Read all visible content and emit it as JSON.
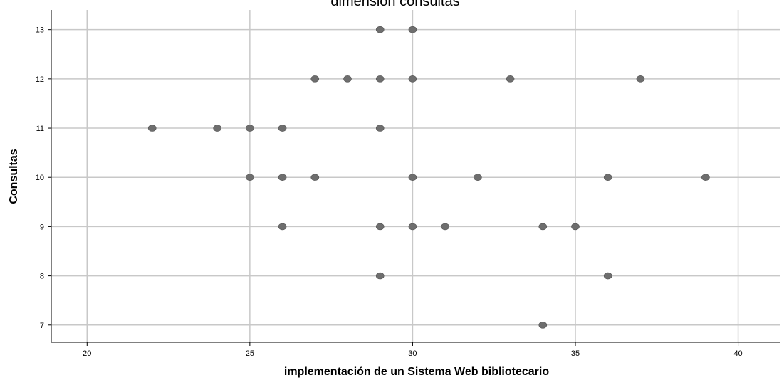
{
  "chart_data": {
    "type": "scatter",
    "title": "dimensión consultas",
    "xlabel": "implementación de un Sistema Web bibliotecario",
    "ylabel": "Consultas",
    "xlim": [
      18.9,
      41.3
    ],
    "ylim": [
      6.65,
      13.4
    ],
    "xticks": [
      20,
      25,
      30,
      35,
      40
    ],
    "yticks": [
      7,
      8,
      9,
      10,
      11,
      12,
      13
    ],
    "xtick_labels": [
      "20",
      "25",
      "30",
      "35",
      "40"
    ],
    "ytick_labels": [
      "7",
      "8",
      "9",
      "10",
      "11",
      "12",
      "13"
    ],
    "grid": true,
    "marker_color": "#6e6e6e",
    "grid_color": "#c8c8c8",
    "points": [
      {
        "x": 29,
        "y": 13
      },
      {
        "x": 30,
        "y": 13
      },
      {
        "x": 27,
        "y": 12
      },
      {
        "x": 28,
        "y": 12
      },
      {
        "x": 29,
        "y": 12
      },
      {
        "x": 30,
        "y": 12
      },
      {
        "x": 33,
        "y": 12
      },
      {
        "x": 37,
        "y": 12
      },
      {
        "x": 22,
        "y": 11
      },
      {
        "x": 24,
        "y": 11
      },
      {
        "x": 25,
        "y": 11
      },
      {
        "x": 26,
        "y": 11
      },
      {
        "x": 29,
        "y": 11
      },
      {
        "x": 25,
        "y": 10
      },
      {
        "x": 26,
        "y": 10
      },
      {
        "x": 27,
        "y": 10
      },
      {
        "x": 30,
        "y": 10
      },
      {
        "x": 32,
        "y": 10
      },
      {
        "x": 36,
        "y": 10
      },
      {
        "x": 39,
        "y": 10
      },
      {
        "x": 26,
        "y": 9
      },
      {
        "x": 29,
        "y": 9
      },
      {
        "x": 30,
        "y": 9
      },
      {
        "x": 31,
        "y": 9
      },
      {
        "x": 34,
        "y": 9
      },
      {
        "x": 35,
        "y": 9
      },
      {
        "x": 29,
        "y": 8
      },
      {
        "x": 36,
        "y": 8
      },
      {
        "x": 34,
        "y": 7
      }
    ]
  }
}
